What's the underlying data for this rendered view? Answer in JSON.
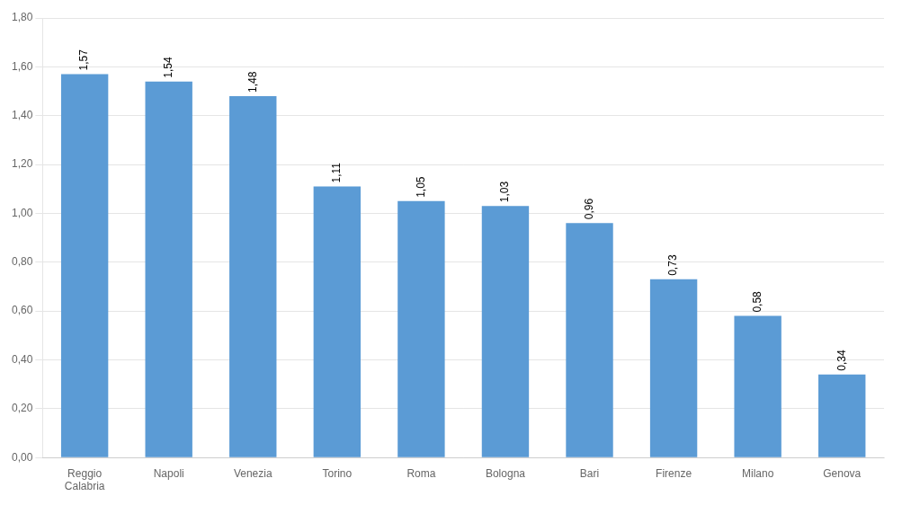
{
  "chart_data": {
    "type": "bar",
    "categories": [
      "Reggio\nCalabria",
      "Napoli",
      "Venezia",
      "Torino",
      "Roma",
      "Bologna",
      "Bari",
      "Firenze",
      "Milano",
      "Genova"
    ],
    "values": [
      1.57,
      1.54,
      1.48,
      1.11,
      1.05,
      1.03,
      0.96,
      0.73,
      0.58,
      0.34
    ],
    "value_labels": [
      "1,57",
      "1,54",
      "1,48",
      "1,11",
      "1,05",
      "1,03",
      "0,96",
      "0,73",
      "0,58",
      "0,34"
    ],
    "data_labels": true,
    "color": "#5B9BD5",
    "ylim": [
      0,
      1.8
    ],
    "yticks": [
      {
        "value": 0.0,
        "label": "0,00"
      },
      {
        "value": 0.2,
        "label": "0,20"
      },
      {
        "value": 0.4,
        "label": "0,40"
      },
      {
        "value": 0.6,
        "label": "0,60"
      },
      {
        "value": 0.8,
        "label": "0,80"
      },
      {
        "value": 1.0,
        "label": "1,00"
      },
      {
        "value": 1.2,
        "label": "1,20"
      },
      {
        "value": 1.4,
        "label": "1,40"
      },
      {
        "value": 1.6,
        "label": "1,60"
      },
      {
        "value": 1.8,
        "label": "1,80"
      }
    ],
    "grid": true
  }
}
